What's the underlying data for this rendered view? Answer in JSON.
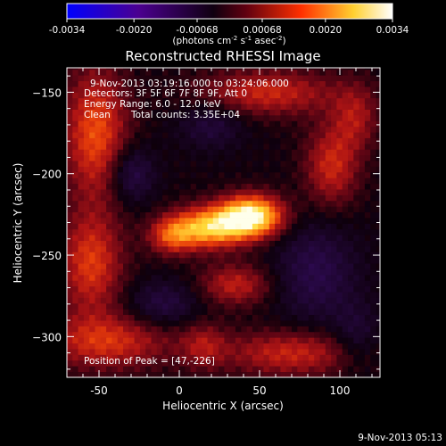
{
  "colorbar": {
    "ticks": [
      "-0.0034",
      "-0.0020",
      "-0.00068",
      "0.00068",
      "0.0020",
      "0.0034"
    ],
    "tick_values": [
      -0.0034,
      -0.002,
      -0.00068,
      0.00068,
      0.002,
      0.0034
    ],
    "range": [
      -0.0034,
      0.0034
    ],
    "unit_base": "(photons cm",
    "unit_sup1": "-2",
    "unit_mid1": " s",
    "unit_sup2": "-1",
    "unit_mid2": " asec",
    "unit_sup3": "-2",
    "unit_end": ")",
    "colors": [
      "#0000ff",
      "#4b0082",
      "#000000",
      "#800020",
      "#ff4000",
      "#ffff80",
      "#ffffff"
    ]
  },
  "chart_data": {
    "type": "heatmap",
    "title": "Reconstructed RHESSI Image",
    "xlabel": "Heliocentric X (arcsec)",
    "ylabel": "Heliocentric Y (arcsec)",
    "xlim": [
      -70,
      125
    ],
    "ylim": [
      -325,
      -135
    ],
    "xticks": [
      -50,
      0,
      50,
      100
    ],
    "yticks": [
      -150,
      -200,
      -250,
      -300
    ],
    "peak": [
      47,
      -226
    ],
    "blobs": [
      {
        "x": 45,
        "y": -226,
        "sx": 14,
        "sy": 9,
        "amp": 0.0034
      },
      {
        "x": 18,
        "y": -233,
        "sx": 16,
        "sy": 9,
        "amp": 0.0026
      },
      {
        "x": -5,
        "y": -238,
        "sx": 10,
        "sy": 8,
        "amp": 0.0015
      },
      {
        "x": -52,
        "y": -175,
        "sx": 14,
        "sy": 28,
        "amp": 0.0018
      },
      {
        "x": -55,
        "y": -255,
        "sx": 14,
        "sy": 22,
        "amp": 0.0016
      },
      {
        "x": -45,
        "y": -303,
        "sx": 28,
        "sy": 12,
        "amp": 0.0015
      },
      {
        "x": 55,
        "y": -150,
        "sx": 30,
        "sy": 10,
        "amp": 0.0014
      },
      {
        "x": 95,
        "y": -195,
        "sx": 12,
        "sy": 18,
        "amp": 0.0014
      },
      {
        "x": 35,
        "y": -268,
        "sx": 16,
        "sy": 9,
        "amp": 0.0013
      },
      {
        "x": 70,
        "y": -310,
        "sx": 30,
        "sy": 10,
        "amp": 0.0014
      },
      {
        "x": 110,
        "y": -165,
        "sx": 10,
        "sy": 14,
        "amp": 0.001
      },
      {
        "x": 15,
        "y": -305,
        "sx": 10,
        "sy": 10,
        "amp": 0.0009
      },
      {
        "x": -30,
        "y": -200,
        "sx": 10,
        "sy": 12,
        "amp": -0.0011
      },
      {
        "x": 85,
        "y": -260,
        "sx": 18,
        "sy": 22,
        "amp": -0.001
      },
      {
        "x": 20,
        "y": -170,
        "sx": 14,
        "sy": 10,
        "amp": -0.0008
      },
      {
        "x": -10,
        "y": -280,
        "sx": 16,
        "sy": 10,
        "amp": -0.0009
      },
      {
        "x": 110,
        "y": -300,
        "sx": 10,
        "sy": 14,
        "amp": -0.0007
      }
    ]
  },
  "annotations": {
    "time_range": "9-Nov-2013 03:19:16.000 to 03:24:06.000",
    "detectors": "Detectors: 3F 5F 6F 7F 8F 9F, Att 0",
    "energy": "Energy Range: 6.0 - 12.0 keV",
    "clean": "Clean",
    "counts": "Total counts: 3.35E+04",
    "peak": "Position of Peak = [47,-226]"
  },
  "footer": {
    "timestamp": "9-Nov-2013 05:13"
  }
}
